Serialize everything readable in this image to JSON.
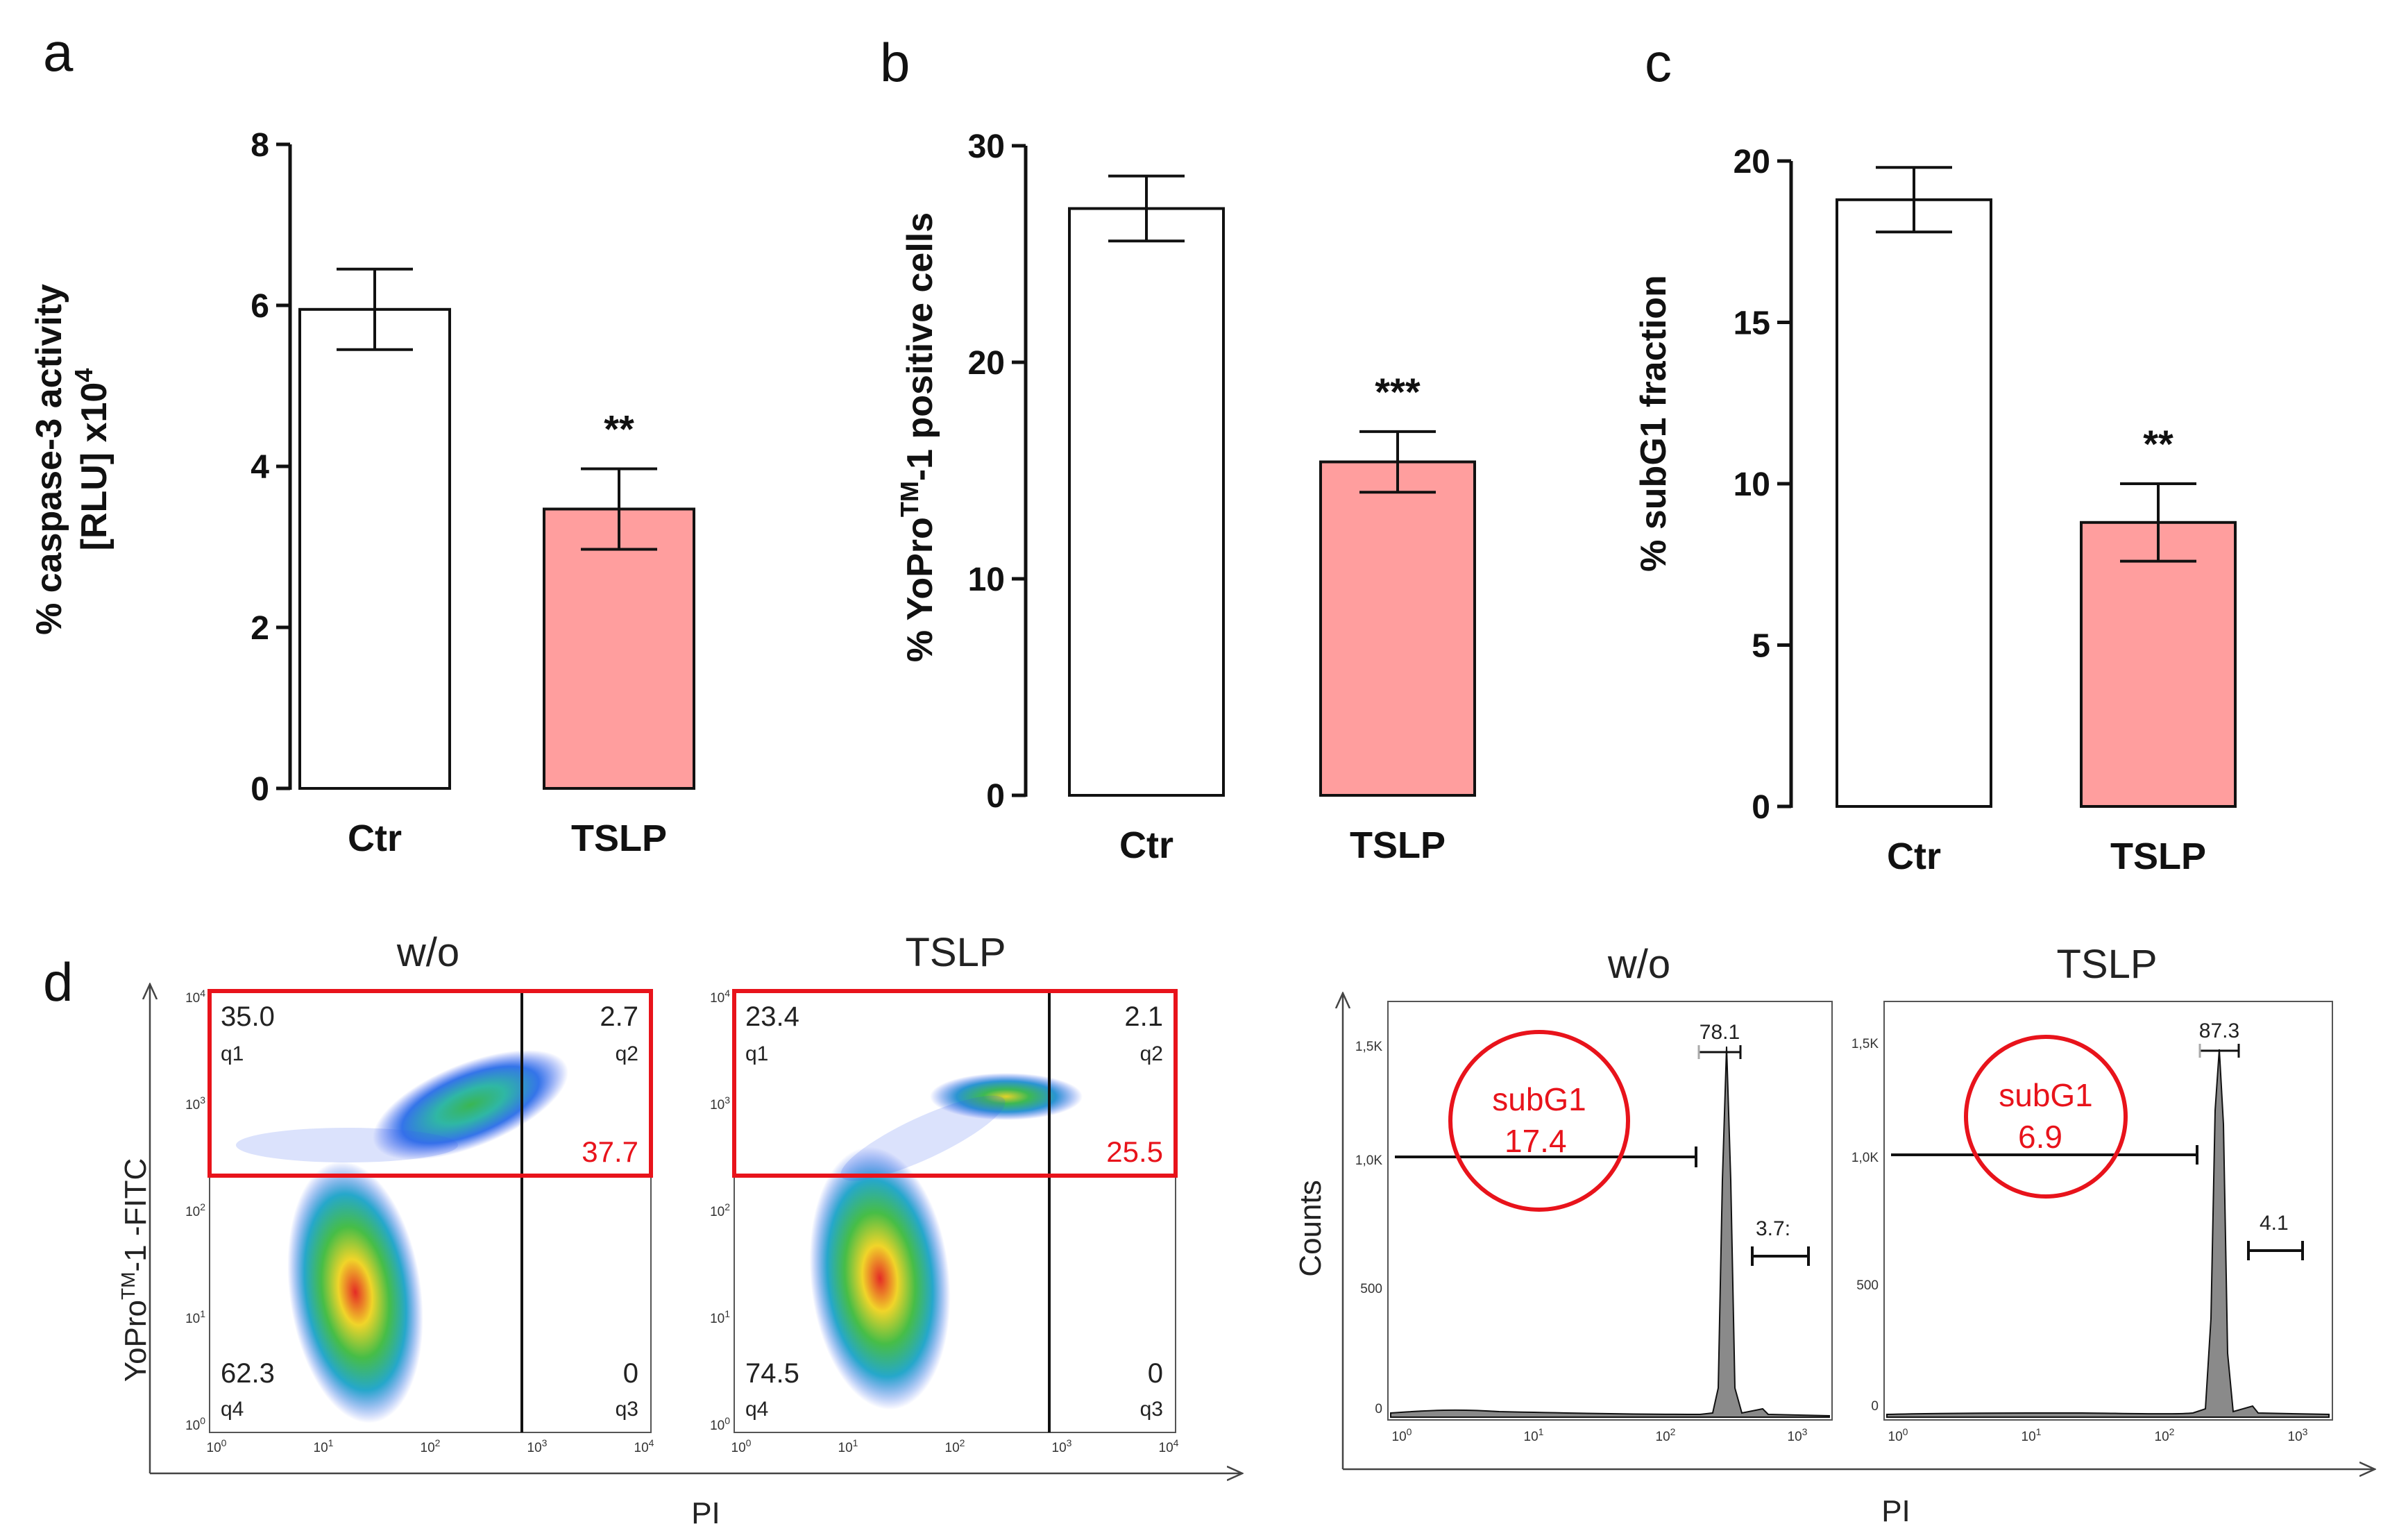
{
  "panels": {
    "a": "a",
    "b": "b",
    "c": "c",
    "d": "d"
  },
  "colors": {
    "ctr_fill": "#ffffff",
    "tslp_fill": "#ff9e9e",
    "gate_red": "#e8131b",
    "axis": "#111111"
  },
  "chart_data": [
    {
      "type": "bar",
      "id": "a",
      "title": "",
      "ylabel_line1": "% caspase-3 activity",
      "ylabel_line2": "[RLU] x10",
      "ylabel_sup": "4",
      "categories": [
        "Ctr",
        "TSLP"
      ],
      "values": [
        5.95,
        3.47
      ],
      "errors": [
        0.5,
        0.5
      ],
      "significance": [
        "",
        "**"
      ],
      "ylim": [
        0,
        8
      ],
      "yticks": [
        0,
        2,
        4,
        6,
        8
      ]
    },
    {
      "type": "bar",
      "id": "b",
      "title": "",
      "ylabel_pre": "% YoPro",
      "ylabel_sup": "TM",
      "ylabel_post": "-1 positive cells",
      "categories": [
        "Ctr",
        "TSLP"
      ],
      "values": [
        27.1,
        15.4
      ],
      "errors": [
        1.5,
        1.4
      ],
      "significance": [
        "",
        "***"
      ],
      "ylim": [
        0,
        30
      ],
      "yticks": [
        0,
        10,
        20,
        30
      ]
    },
    {
      "type": "bar",
      "id": "c",
      "title": "",
      "ylabel": "% subG1 fraction",
      "categories": [
        "Ctr",
        "TSLP"
      ],
      "values": [
        18.8,
        8.8
      ],
      "errors": [
        1.0,
        1.2
      ],
      "significance": [
        "",
        "**"
      ],
      "ylim": [
        0,
        20
      ],
      "yticks": [
        0,
        5,
        10,
        15,
        20
      ]
    }
  ],
  "flow": {
    "scatter": {
      "y_label_pre": "YoPro",
      "y_label_sup": "TM",
      "y_label_post": "-1 -FITC",
      "x_label": "PI",
      "tick_labels": [
        "10",
        "10",
        "10",
        "10",
        "10"
      ],
      "tick_exps": [
        "0",
        "1",
        "2",
        "3",
        "4"
      ],
      "plots": [
        {
          "title": "w/o",
          "q1": "35.0",
          "q2": "2.7",
          "q3": "0",
          "q4": "62.3",
          "gate_total": "37.7",
          "q1_id": "q1",
          "q2_id": "q2",
          "q3_id": "q3",
          "q4_id": "q4"
        },
        {
          "title": "TSLP",
          "q1": "23.4",
          "q2": "2.1",
          "q3": "0",
          "q4": "74.5",
          "gate_total": "25.5",
          "q1_id": "q1",
          "q2_id": "q2",
          "q3_id": "q3",
          "q4_id": "q4"
        }
      ]
    },
    "histogram": {
      "y_label": "Counts",
      "x_label": "PI",
      "y_ticks": [
        "0",
        "500",
        "1,0K",
        "1,5K"
      ],
      "x_tick_labels": [
        "10",
        "10",
        "10",
        "10"
      ],
      "x_tick_exps": [
        "0",
        "1",
        "2",
        "3"
      ],
      "plots": [
        {
          "title": "w/o",
          "subg1_label": "subG1",
          "subg1_value": "17.4",
          "peak": "78.1",
          "right": "3.7:"
        },
        {
          "title": "TSLP",
          "subg1_label": "subG1",
          "subg1_value": "6.9",
          "peak": "87.3",
          "right": "4.1"
        }
      ]
    }
  }
}
